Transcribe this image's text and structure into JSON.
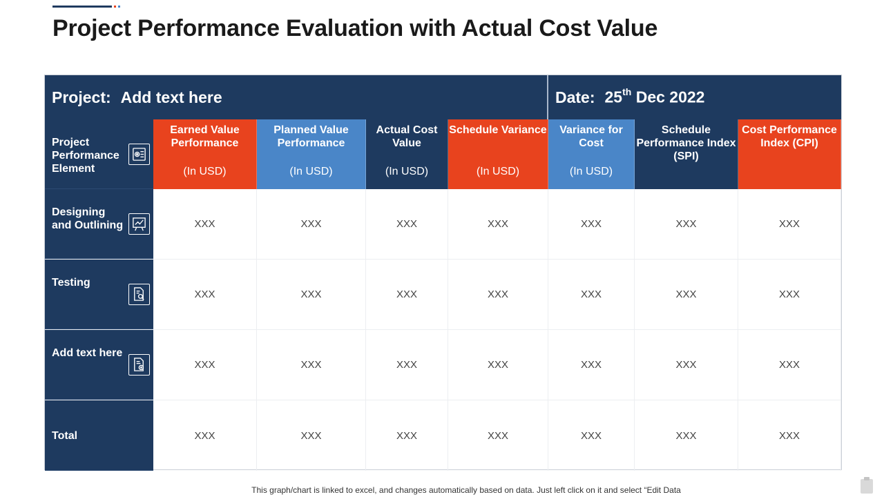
{
  "title": "Project Performance Evaluation with Actual Cost Value",
  "header_bar": {
    "project_label": "Project:",
    "project_value": "Add text here",
    "date_label": "Date:",
    "date_day": "25",
    "date_suffix": "th",
    "date_rest": "Dec 2022"
  },
  "table": {
    "corner_label": "Project Performance Element",
    "columns": [
      {
        "title": "Earned Value Performance",
        "unit": "(In USD)",
        "color": "#e8431e"
      },
      {
        "title": "Planned Value Performance",
        "unit": "(In USD)",
        "color": "#4a86c8"
      },
      {
        "title": "Actual Cost Value",
        "unit": "(In USD)",
        "color": "#1e3a5f"
      },
      {
        "title": "Schedule Variance",
        "unit": "(In USD)",
        "color": "#e8431e"
      },
      {
        "title": "Variance for Cost",
        "unit": "(In USD)",
        "color": "#4a86c8"
      },
      {
        "title": "Schedule Performance Index (SPI)",
        "unit": "",
        "color": "#1e3a5f"
      },
      {
        "title": "Cost Performance Index (CPI)",
        "unit": "",
        "color": "#e8431e"
      }
    ],
    "rows": [
      {
        "label": "Designing and Outlining",
        "icon": "whiteboard-chart-icon",
        "cells": [
          "XXX",
          "XXX",
          "XXX",
          "XXX",
          "XXX",
          "XXX",
          "XXX"
        ]
      },
      {
        "label": "Testing",
        "icon": "document-search-icon",
        "cells": [
          "XXX",
          "XXX",
          "XXX",
          "XXX",
          "XXX",
          "XXX",
          "XXX"
        ]
      },
      {
        "label": "Add text here",
        "icon": "document-add-icon",
        "cells": [
          "XXX",
          "XXX",
          "XXX",
          "XXX",
          "XXX",
          "XXX",
          "XXX"
        ]
      },
      {
        "label": "Total",
        "icon": "",
        "cells": [
          "XXX",
          "XXX",
          "XXX",
          "XXX",
          "XXX",
          "XXX",
          "XXX"
        ]
      }
    ]
  },
  "footer_note": "This graph/chart is linked to excel, and changes automatically based on data. Just left click on it and select “Edit Data"
}
